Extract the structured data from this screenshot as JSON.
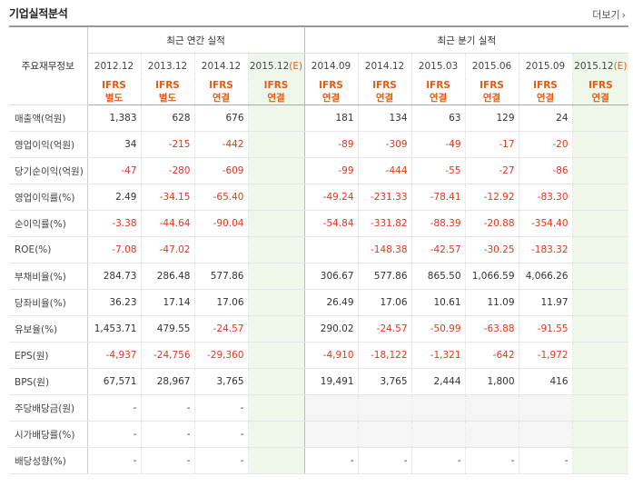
{
  "header": {
    "title": "기업실적분석",
    "more_label": "더보기"
  },
  "table": {
    "row_label_header": "주요재무정보",
    "annual_group": "최근 연간 실적",
    "quarter_group": "최근 분기 실적",
    "periods": [
      "2012.12",
      "2013.12",
      "2014.12",
      "2015.12",
      "2014.09",
      "2014.12",
      "2015.03",
      "2015.06",
      "2015.09",
      "2015.12"
    ],
    "estimate_suffix": "(E)",
    "ifrs": [
      {
        "t": "IFRS",
        "s": "별도"
      },
      {
        "t": "IFRS",
        "s": "별도"
      },
      {
        "t": "IFRS",
        "s": "연결"
      },
      {
        "t": "IFRS",
        "s": "연결"
      },
      {
        "t": "IFRS",
        "s": "연결"
      },
      {
        "t": "IFRS",
        "s": "연결"
      },
      {
        "t": "IFRS",
        "s": "연결"
      },
      {
        "t": "IFRS",
        "s": "연결"
      },
      {
        "t": "IFRS",
        "s": "연결"
      },
      {
        "t": "IFRS",
        "s": "연결"
      }
    ],
    "rows": [
      {
        "label": "매출액(억원)",
        "values": [
          "1,383",
          "628",
          "676",
          "",
          "181",
          "134",
          "63",
          "129",
          "24",
          ""
        ]
      },
      {
        "label": "영업이익(억원)",
        "values": [
          "34",
          "-215",
          "-442",
          "",
          "-89",
          "-309",
          "-49",
          "-17",
          "-20",
          ""
        ]
      },
      {
        "label": "당기순이익(억원)",
        "values": [
          "-47",
          "-280",
          "-609",
          "",
          "-99",
          "-444",
          "-55",
          "-27",
          "-86",
          ""
        ]
      },
      {
        "label": "영업이익률(%)",
        "values": [
          "2.49",
          "-34.15",
          "-65.40",
          "",
          "-49.24",
          "-231.33",
          "-78.41",
          "-12.92",
          "-83.30",
          ""
        ]
      },
      {
        "label": "순이익률(%)",
        "values": [
          "-3.38",
          "-44.64",
          "-90.04",
          "",
          "-54.84",
          "-331.82",
          "-88.39",
          "-20.88",
          "-354.40",
          ""
        ]
      },
      {
        "label": "ROE(%)",
        "values": [
          "-7.08",
          "-47.02",
          "",
          "",
          "",
          "-148.38",
          "-42.57",
          "-30.25",
          "-183.32",
          ""
        ]
      },
      {
        "label": "부채비율(%)",
        "values": [
          "284.73",
          "286.48",
          "577.86",
          "",
          "306.67",
          "577.86",
          "865.50",
          "1,066.59",
          "4,066.26",
          ""
        ]
      },
      {
        "label": "당좌비율(%)",
        "values": [
          "36.23",
          "17.14",
          "17.06",
          "",
          "26.49",
          "17.06",
          "10.61",
          "11.09",
          "11.97",
          ""
        ]
      },
      {
        "label": "유보율(%)",
        "values": [
          "1,453.71",
          "479.55",
          "-24.57",
          "",
          "290.02",
          "-24.57",
          "-50.99",
          "-63.88",
          "-91.55",
          ""
        ]
      },
      {
        "label": "EPS(원)",
        "values": [
          "-4,937",
          "-24,756",
          "-29,360",
          "",
          "-4,910",
          "-18,122",
          "-1,321",
          "-642",
          "-1,972",
          ""
        ]
      },
      {
        "label": "BPS(원)",
        "values": [
          "67,571",
          "28,967",
          "3,765",
          "",
          "19,491",
          "3,765",
          "2,444",
          "1,800",
          "416",
          ""
        ]
      },
      {
        "label": "주당배당금(원)",
        "values": [
          "-",
          "-",
          "-",
          "",
          "",
          "",
          "",
          "",
          "",
          ""
        ]
      },
      {
        "label": "시가배당률(%)",
        "values": [
          "-",
          "-",
          "-",
          "",
          "",
          "",
          "",
          "",
          "",
          ""
        ]
      },
      {
        "label": "배당성향(%)",
        "values": [
          "-",
          "-",
          "-",
          "",
          "-",
          "-",
          "-",
          "-",
          "-",
          ""
        ]
      }
    ]
  },
  "colors": {
    "negative": "#e8351c",
    "ifrs": "#e85b0f",
    "estimate_bg": "#eef7ea"
  }
}
